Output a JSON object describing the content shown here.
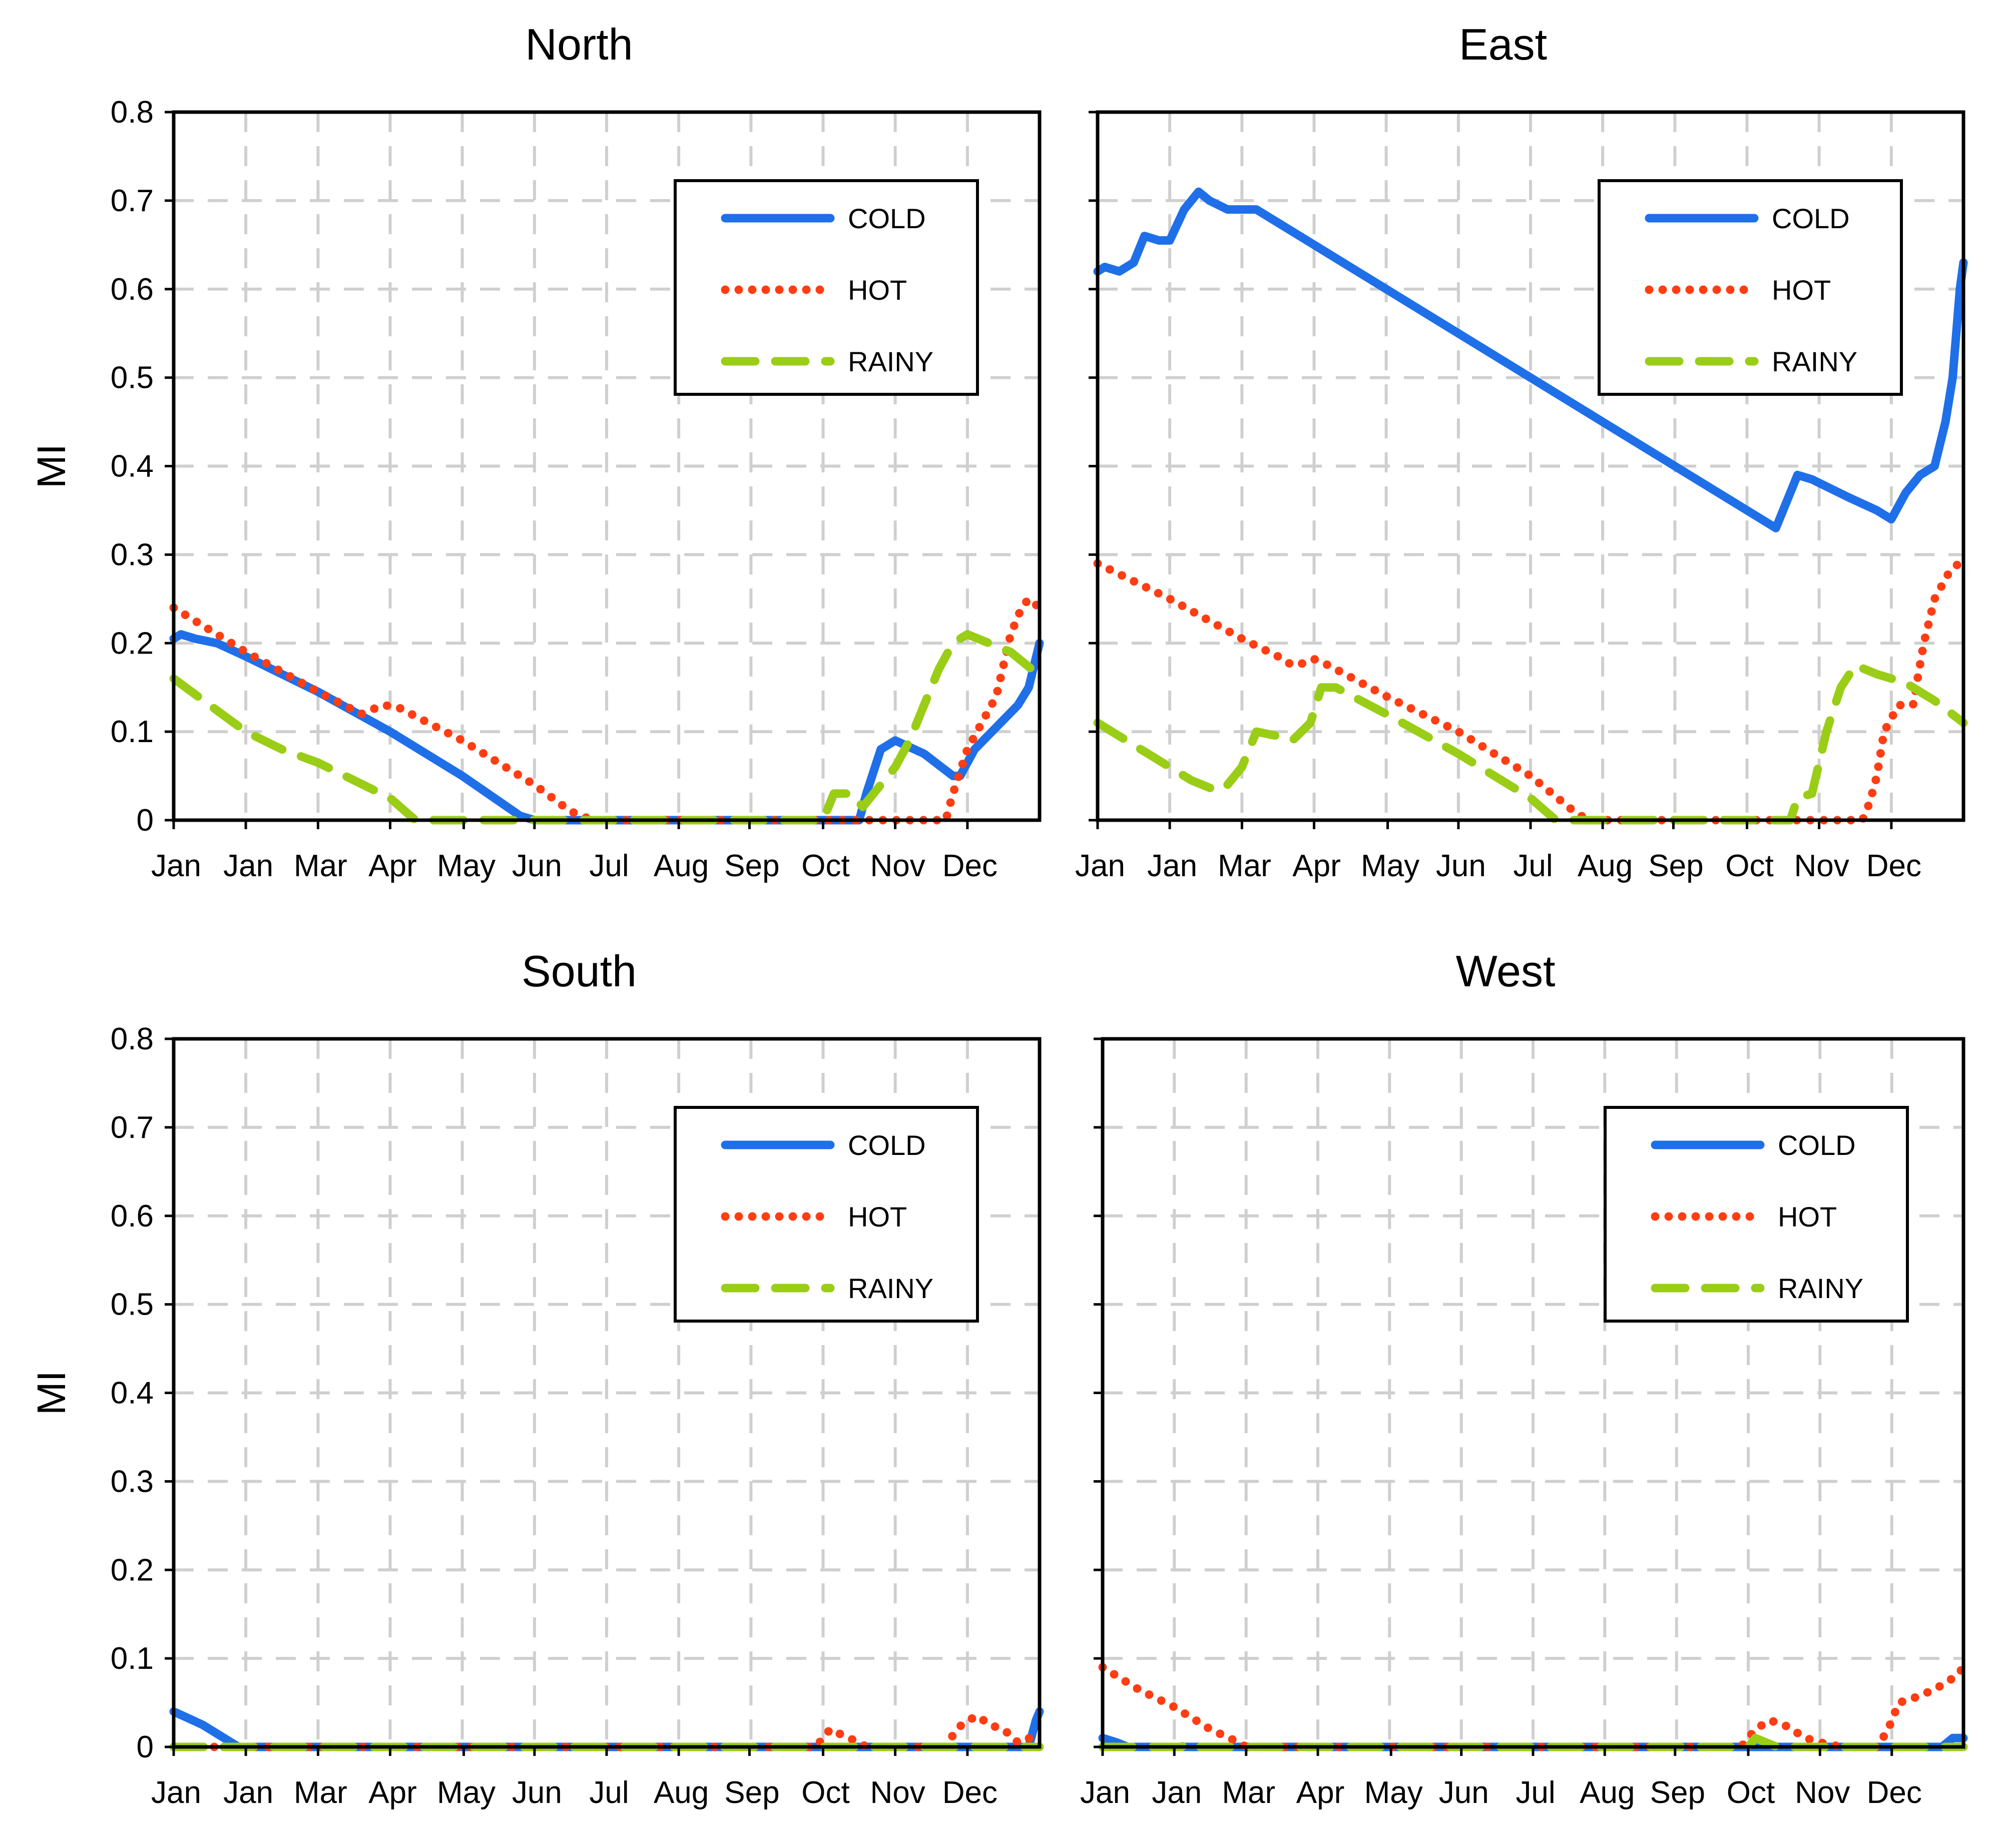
{
  "figure": {
    "y_axis_label": "MI"
  },
  "series_styles": [
    {
      "name": "COLD",
      "color": "#1f6fe8",
      "style": "solid"
    },
    {
      "name": "HOT",
      "color": "#ff3d12",
      "style": "dotted"
    },
    {
      "name": "RAINY",
      "color": "#9acd16",
      "style": "dashed"
    }
  ],
  "chart_data": [
    {
      "type": "line",
      "title": "North",
      "xlabel": "",
      "ylabel": "MI",
      "ylim": [
        0,
        0.8
      ],
      "xlim": [
        0,
        12
      ],
      "x_tick_labels": [
        "Jan",
        "Jan",
        "Mar",
        "Apr",
        "May",
        "Jun",
        "Jul",
        "Aug",
        "Sep",
        "Oct",
        "Nov",
        "Dec"
      ],
      "y_ticks": [
        0,
        0.1,
        0.2,
        0.3,
        0.4,
        0.5,
        0.6,
        0.7,
        0.8
      ],
      "y_tick_labels": [
        "0",
        "0.1",
        "0.2",
        "0.3",
        "0.4",
        "0.5",
        "0.6",
        "0.7",
        "0.8"
      ],
      "legend": {
        "position": "top-right",
        "entries": [
          "COLD",
          "HOT",
          "RAINY"
        ]
      },
      "series": [
        {
          "name": "COLD",
          "points": [
            [
              0,
              0.205
            ],
            [
              0.1,
              0.21
            ],
            [
              0.3,
              0.205
            ],
            [
              0.6,
              0.2
            ],
            [
              1.0,
              0.185
            ],
            [
              2.0,
              0.145
            ],
            [
              3.0,
              0.1
            ],
            [
              4.0,
              0.05
            ],
            [
              4.8,
              0.005
            ],
            [
              5.0,
              0
            ],
            [
              9.5,
              0
            ],
            [
              9.6,
              0.03
            ],
            [
              9.8,
              0.08
            ],
            [
              10.0,
              0.09
            ],
            [
              10.4,
              0.075
            ],
            [
              10.8,
              0.05
            ],
            [
              10.9,
              0.05
            ],
            [
              11.1,
              0.08
            ],
            [
              11.4,
              0.105
            ],
            [
              11.7,
              0.13
            ],
            [
              11.85,
              0.15
            ],
            [
              12.0,
              0.2
            ]
          ]
        },
        {
          "name": "HOT",
          "points": [
            [
              0,
              0.24
            ],
            [
              0.5,
              0.215
            ],
            [
              1.0,
              0.19
            ],
            [
              2.0,
              0.145
            ],
            [
              2.6,
              0.12
            ],
            [
              2.9,
              0.13
            ],
            [
              3.1,
              0.128
            ],
            [
              4.0,
              0.09
            ],
            [
              5.0,
              0.04
            ],
            [
              5.5,
              0.01
            ],
            [
              5.8,
              0
            ],
            [
              10.7,
              0
            ],
            [
              10.8,
              0.03
            ],
            [
              11.0,
              0.08
            ],
            [
              11.2,
              0.11
            ],
            [
              11.4,
              0.14
            ],
            [
              11.6,
              0.21
            ],
            [
              11.75,
              0.24
            ],
            [
              11.85,
              0.25
            ],
            [
              12.0,
              0.24
            ]
          ]
        },
        {
          "name": "RAINY",
          "points": [
            [
              0,
              0.16
            ],
            [
              0.5,
              0.13
            ],
            [
              1.0,
              0.1
            ],
            [
              1.5,
              0.08
            ],
            [
              2.0,
              0.065
            ],
            [
              2.5,
              0.045
            ],
            [
              3.0,
              0.025
            ],
            [
              3.35,
              0
            ],
            [
              9.0,
              0
            ],
            [
              9.15,
              0.03
            ],
            [
              9.4,
              0.03
            ],
            [
              9.55,
              0.015
            ],
            [
              9.7,
              0.03
            ],
            [
              10.0,
              0.06
            ],
            [
              10.2,
              0.09
            ],
            [
              10.4,
              0.13
            ],
            [
              10.6,
              0.17
            ],
            [
              10.8,
              0.2
            ],
            [
              11.0,
              0.21
            ],
            [
              11.3,
              0.2
            ],
            [
              11.6,
              0.19
            ],
            [
              11.9,
              0.17
            ],
            [
              12.0,
              0.165
            ]
          ]
        }
      ]
    },
    {
      "type": "line",
      "title": "East",
      "xlabel": "",
      "ylabel": "",
      "ylim": [
        0,
        0.8
      ],
      "xlim": [
        0,
        12
      ],
      "x_tick_labels": [
        "Jan",
        "Jan",
        "Mar",
        "Apr",
        "May",
        "Jun",
        "Jul",
        "Aug",
        "Sep",
        "Oct",
        "Nov",
        "Dec"
      ],
      "y_ticks": [
        0,
        0.1,
        0.2,
        0.3,
        0.4,
        0.5,
        0.6,
        0.7,
        0.8
      ],
      "legend": {
        "position": "top-right",
        "entries": [
          "COLD",
          "HOT",
          "RAINY"
        ]
      },
      "series": [
        {
          "name": "COLD",
          "points": [
            [
              0,
              0.62
            ],
            [
              0.1,
              0.625
            ],
            [
              0.3,
              0.62
            ],
            [
              0.5,
              0.63
            ],
            [
              0.65,
              0.66
            ],
            [
              0.85,
              0.655
            ],
            [
              1.0,
              0.655
            ],
            [
              1.2,
              0.69
            ],
            [
              1.4,
              0.71
            ],
            [
              1.55,
              0.7
            ],
            [
              1.8,
              0.69
            ],
            [
              2.2,
              0.69
            ],
            [
              3.0,
              0.65
            ],
            [
              4.0,
              0.6
            ],
            [
              5.0,
              0.55
            ],
            [
              6.0,
              0.5
            ],
            [
              7.0,
              0.45
            ],
            [
              8.0,
              0.4
            ],
            [
              9.0,
              0.35
            ],
            [
              9.4,
              0.33
            ],
            [
              9.6,
              0.37
            ],
            [
              9.7,
              0.39
            ],
            [
              9.9,
              0.385
            ],
            [
              10.4,
              0.365
            ],
            [
              10.8,
              0.35
            ],
            [
              11.0,
              0.34
            ],
            [
              11.2,
              0.37
            ],
            [
              11.4,
              0.39
            ],
            [
              11.6,
              0.4
            ],
            [
              11.75,
              0.45
            ],
            [
              11.85,
              0.5
            ],
            [
              11.95,
              0.6
            ],
            [
              12.0,
              0.63
            ]
          ]
        },
        {
          "name": "HOT",
          "points": [
            [
              0,
              0.29
            ],
            [
              1.0,
              0.25
            ],
            [
              2.0,
              0.205
            ],
            [
              2.5,
              0.185
            ],
            [
              2.7,
              0.175
            ],
            [
              2.9,
              0.178
            ],
            [
              3.0,
              0.182
            ],
            [
              3.2,
              0.175
            ],
            [
              4.0,
              0.14
            ],
            [
              5.0,
              0.1
            ],
            [
              6.0,
              0.05
            ],
            [
              6.6,
              0.01
            ],
            [
              6.8,
              0
            ],
            [
              10.6,
              0
            ],
            [
              10.7,
              0.02
            ],
            [
              10.8,
              0.05
            ],
            [
              10.9,
              0.1
            ],
            [
              11.1,
              0.13
            ],
            [
              11.3,
              0.13
            ],
            [
              11.45,
              0.2
            ],
            [
              11.6,
              0.25
            ],
            [
              11.8,
              0.28
            ],
            [
              12.0,
              0.295
            ]
          ]
        },
        {
          "name": "RAINY",
          "points": [
            [
              0,
              0.11
            ],
            [
              0.5,
              0.085
            ],
            [
              1.0,
              0.06
            ],
            [
              1.3,
              0.045
            ],
            [
              1.6,
              0.035
            ],
            [
              1.75,
              0.035
            ],
            [
              2.0,
              0.06
            ],
            [
              2.2,
              0.1
            ],
            [
              2.5,
              0.095
            ],
            [
              2.7,
              0.09
            ],
            [
              2.95,
              0.11
            ],
            [
              3.1,
              0.15
            ],
            [
              3.3,
              0.15
            ],
            [
              4.0,
              0.12
            ],
            [
              5.0,
              0.075
            ],
            [
              6.0,
              0.025
            ],
            [
              6.35,
              0
            ],
            [
              9.6,
              0
            ],
            [
              9.7,
              0.025
            ],
            [
              9.9,
              0.03
            ],
            [
              10.1,
              0.1
            ],
            [
              10.3,
              0.15
            ],
            [
              10.5,
              0.175
            ],
            [
              10.8,
              0.165
            ],
            [
              11.2,
              0.155
            ],
            [
              11.6,
              0.135
            ],
            [
              12.0,
              0.11
            ]
          ]
        }
      ]
    },
    {
      "type": "line",
      "title": "South",
      "xlabel": "",
      "ylabel": "MI",
      "ylim": [
        0,
        0.8
      ],
      "xlim": [
        0,
        12
      ],
      "x_tick_labels": [
        "Jan",
        "Jan",
        "Mar",
        "Apr",
        "May",
        "Jun",
        "Jul",
        "Aug",
        "Sep",
        "Oct",
        "Nov",
        "Dec"
      ],
      "y_ticks": [
        0,
        0.1,
        0.2,
        0.3,
        0.4,
        0.5,
        0.6,
        0.7,
        0.8
      ],
      "y_tick_labels": [
        "0",
        "0.1",
        "0.2",
        "0.3",
        "0.4",
        "0.5",
        "0.6",
        "0.7",
        "0.8"
      ],
      "legend": {
        "position": "top-right",
        "entries": [
          "COLD",
          "HOT",
          "RAINY"
        ]
      },
      "series": [
        {
          "name": "COLD",
          "points": [
            [
              0,
              0.04
            ],
            [
              0.4,
              0.025
            ],
            [
              0.8,
              0.005
            ],
            [
              0.9,
              0
            ],
            [
              11.85,
              0
            ],
            [
              11.95,
              0.03
            ],
            [
              12.0,
              0.04
            ]
          ]
        },
        {
          "name": "HOT",
          "points": [
            [
              0,
              0
            ],
            [
              8.9,
              0
            ],
            [
              9.1,
              0.02
            ],
            [
              9.3,
              0.012
            ],
            [
              9.5,
              0.005
            ],
            [
              9.6,
              0
            ],
            [
              10.7,
              0
            ],
            [
              10.85,
              0.02
            ],
            [
              11.0,
              0.03
            ],
            [
              11.15,
              0.035
            ],
            [
              11.3,
              0.025
            ],
            [
              11.5,
              0.02
            ],
            [
              11.7,
              0.005
            ],
            [
              11.85,
              0.01
            ],
            [
              12.0,
              0
            ]
          ]
        },
        {
          "name": "RAINY",
          "points": [
            [
              0,
              0
            ],
            [
              12.0,
              0
            ]
          ]
        }
      ]
    },
    {
      "type": "line",
      "title": "West",
      "xlabel": "",
      "ylabel": "",
      "ylim": [
        0,
        0.8
      ],
      "xlim": [
        0,
        12
      ],
      "x_tick_labels": [
        "Jan",
        "Jan",
        "Mar",
        "Apr",
        "May",
        "Jun",
        "Jul",
        "Aug",
        "Sep",
        "Oct",
        "Nov",
        "Dec"
      ],
      "y_ticks": [
        0,
        0.1,
        0.2,
        0.3,
        0.4,
        0.5,
        0.6,
        0.7,
        0.8
      ],
      "legend": {
        "position": "top-right",
        "entries": [
          "COLD",
          "HOT",
          "RAINY"
        ]
      },
      "series": [
        {
          "name": "COLD",
          "points": [
            [
              0,
              0.01
            ],
            [
              0.2,
              0.005
            ],
            [
              0.35,
              0
            ],
            [
              11.7,
              0
            ],
            [
              11.85,
              0.01
            ],
            [
              12.0,
              0.01
            ]
          ]
        },
        {
          "name": "HOT",
          "points": [
            [
              0,
              0.09
            ],
            [
              0.5,
              0.065
            ],
            [
              1.0,
              0.045
            ],
            [
              1.5,
              0.02
            ],
            [
              1.9,
              0.005
            ],
            [
              2.0,
              0
            ],
            [
              8.9,
              0
            ],
            [
              9.1,
              0.02
            ],
            [
              9.3,
              0.03
            ],
            [
              9.5,
              0.025
            ],
            [
              9.8,
              0.01
            ],
            [
              10.0,
              0.005
            ],
            [
              10.3,
              0
            ],
            [
              10.8,
              0
            ],
            [
              10.95,
              0.02
            ],
            [
              11.1,
              0.05
            ],
            [
              11.3,
              0.055
            ],
            [
              11.6,
              0.065
            ],
            [
              11.9,
              0.08
            ],
            [
              12.0,
              0.09
            ]
          ]
        },
        {
          "name": "RAINY",
          "points": [
            [
              0,
              0
            ],
            [
              1.1,
              0
            ],
            [
              1.2,
              0.005
            ],
            [
              1.3,
              0
            ],
            [
              9.0,
              0
            ],
            [
              9.1,
              0.01
            ],
            [
              9.25,
              0.005
            ],
            [
              9.4,
              0
            ],
            [
              12.0,
              0
            ]
          ]
        }
      ]
    }
  ]
}
